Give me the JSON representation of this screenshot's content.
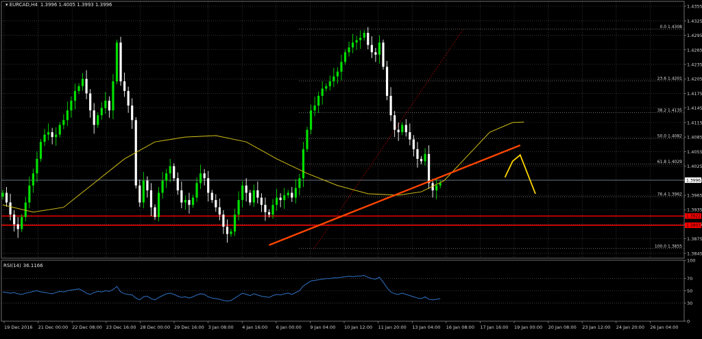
{
  "chart_data": [
    {
      "type": "candlestick",
      "title": "EURCAD,H4  1.3996 1.4005 1.3993 1.3996",
      "symbol": "EURCAD,H4",
      "ohlc_readout": "1.3996 1.4005 1.3993 1.3996",
      "ylim": [
        1.3835,
        1.4365
      ],
      "yticks": [
        "1.4355",
        "1.4325",
        "1.4295",
        "1.4265",
        "1.4235",
        "1.4205",
        "1.4175",
        "1.4145",
        "1.4115",
        "1.4085",
        "1.4055",
        "1.4025",
        "1.3996",
        "1.3965",
        "1.3935",
        "1.3905",
        "1.3875",
        "1.3845"
      ],
      "xticks": [
        "19 Dec 2016",
        "21 Dec 00:00",
        "22 Dec 08:00",
        "23 Dec 16:00",
        "28 Dec 00:00",
        "29 Dec 16:00",
        "3 Jan 08:00",
        "4 Jan 16:00",
        "6 Jan 00:00",
        "9 Jan 04:00",
        "10 Jan 12:00",
        "11 Jan 20:00",
        "13 Jan 04:00",
        "16 Jan 08:00",
        "17 Jan 16:00",
        "19 Jan 00:00",
        "20 Jan 08:00",
        "23 Jan 12:00",
        "24 Jan 20:00",
        "26 Jan 04:00"
      ],
      "current_price": 1.3996,
      "current_price_label": "1.3996",
      "support_levels": [
        {
          "value": 1.3922,
          "label": "1.3922"
        },
        {
          "value": 1.3903,
          "label": "1.3903"
        }
      ],
      "fibonacci": [
        {
          "level": "0.0",
          "price": 1.4308,
          "label": "0.0 1.4308"
        },
        {
          "level": "23.6",
          "price": 1.4201,
          "label": "23.6 1.4201"
        },
        {
          "level": "38.2",
          "price": 1.4135,
          "label": "38.2 1.4135"
        },
        {
          "level": "50.0",
          "price": 1.4082,
          "label": "50.0 1.4082"
        },
        {
          "level": "61.8",
          "price": 1.4029,
          "label": "61.8 1.4029"
        },
        {
          "level": "76.4",
          "price": 1.3962,
          "label": "76.4 1.3962"
        },
        {
          "level": "100.0",
          "price": 1.3855,
          "label": "100.0 1.3855"
        }
      ],
      "trendline": [
        {
          "x": 70,
          "price": 1.3862
        },
        {
          "x": 136,
          "price": 1.4068
        }
      ],
      "forecast_path": [
        {
          "x": 132,
          "price": 1.4002
        },
        {
          "x": 134,
          "price": 1.4035
        },
        {
          "x": 136,
          "price": 1.4048
        },
        {
          "x": 140,
          "price": 1.3968
        }
      ],
      "price_path": [
        1.397,
        1.395,
        1.3925,
        1.3905,
        1.3895,
        1.392,
        1.395,
        1.3985,
        1.401,
        1.404,
        1.4075,
        1.409,
        1.4095,
        1.4085,
        1.409,
        1.411,
        1.412,
        1.414,
        1.416,
        1.418,
        1.419,
        1.4205,
        1.4175,
        1.414,
        1.411,
        1.413,
        1.4145,
        1.416,
        1.414,
        1.42,
        1.428,
        1.42,
        1.418,
        1.415,
        1.412,
        1.3985,
        1.395,
        1.3995,
        1.3975,
        1.394,
        1.392,
        1.397,
        1.3995,
        1.401,
        1.4025,
        1.4,
        1.3975,
        1.395,
        1.3955,
        1.3945,
        1.396,
        1.399,
        1.401,
        1.4,
        1.397,
        1.3955,
        1.394,
        1.3925,
        1.39,
        1.3885,
        1.389,
        1.3925,
        1.3955,
        1.3985,
        1.397,
        1.395,
        1.3975,
        1.396,
        1.3945,
        1.393,
        1.3925,
        1.3945,
        1.396,
        1.3955,
        1.3965,
        1.397,
        1.396,
        1.398,
        1.4,
        1.406,
        1.41,
        1.414,
        1.415,
        1.417,
        1.4185,
        1.419,
        1.42,
        1.421,
        1.422,
        1.424,
        1.426,
        1.427,
        1.428,
        1.4285,
        1.429,
        1.43,
        1.4275,
        1.426,
        1.4255,
        1.428,
        1.423,
        1.417,
        1.413,
        1.41,
        1.4095,
        1.411,
        1.4095,
        1.408,
        1.406,
        1.404,
        1.4035,
        1.405,
        1.399,
        1.3975,
        1.3985,
        1.399
      ],
      "moving_average": [
        [
          0,
          1.3945
        ],
        [
          8,
          1.393
        ],
        [
          16,
          1.394
        ],
        [
          24,
          1.399
        ],
        [
          32,
          1.404
        ],
        [
          40,
          1.4075
        ],
        [
          48,
          1.4085
        ],
        [
          56,
          1.4088
        ],
        [
          64,
          1.4075
        ],
        [
          72,
          1.404
        ],
        [
          80,
          1.401
        ],
        [
          88,
          1.3985
        ],
        [
          96,
          1.3968
        ],
        [
          104,
          1.3965
        ],
        [
          110,
          1.3972
        ],
        [
          116,
          1.3995
        ],
        [
          122,
          1.4045
        ],
        [
          128,
          1.4095
        ],
        [
          134,
          1.4115
        ],
        [
          137,
          1.4116
        ]
      ]
    },
    {
      "type": "line",
      "title": "RSI(14) 36.1166",
      "indicator": "RSI(14)",
      "readout": "36.1166",
      "ylim": [
        0,
        100
      ],
      "yticks": [
        "100",
        "70",
        "50",
        "30",
        "0"
      ],
      "levels": [
        70,
        50,
        30
      ],
      "values": [
        48,
        47,
        46,
        47,
        45,
        44,
        46,
        47,
        49,
        50,
        48,
        47,
        46,
        45,
        47,
        49,
        48,
        50,
        51,
        52,
        53,
        50,
        46,
        44,
        47,
        49,
        48,
        50,
        49,
        52,
        57,
        48,
        45,
        44,
        43,
        38,
        35,
        40,
        41,
        37,
        35,
        39,
        42,
        45,
        46,
        44,
        41,
        39,
        40,
        38,
        40,
        43,
        45,
        44,
        40,
        38,
        37,
        36,
        34,
        33,
        34,
        38,
        42,
        46,
        44,
        42,
        45,
        43,
        41,
        40,
        39,
        42,
        44,
        43,
        45,
        46,
        44,
        47,
        50,
        58,
        62,
        66,
        67,
        68,
        69,
        70,
        70,
        71,
        71,
        72,
        73,
        74,
        73,
        74,
        74,
        75,
        72,
        70,
        69,
        72,
        64,
        55,
        48,
        45,
        44,
        46,
        44,
        42,
        40,
        38,
        37,
        40,
        36,
        35,
        36,
        37
      ]
    }
  ],
  "colors": {
    "bull": "#00e000",
    "bear": "#ffffff",
    "ma": "#d4c017",
    "trendline": "#ff4500",
    "forecast": "#ffd700",
    "support": "#ff0000",
    "grid": "#545454",
    "rsi": "#2f73c7",
    "fib": "#b0b0b0",
    "current": "#7c8796"
  }
}
